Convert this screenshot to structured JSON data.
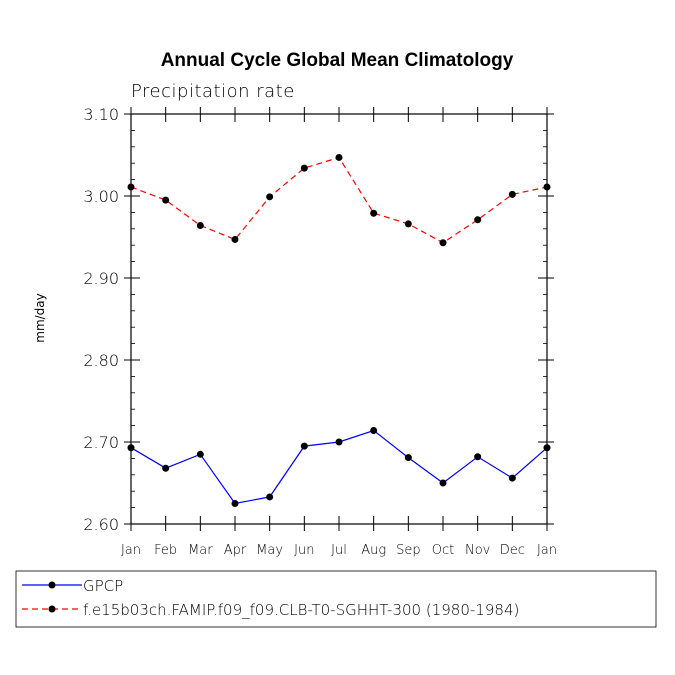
{
  "chart_data": {
    "type": "line",
    "title": "Annual Cycle Global Mean Climatology",
    "subtitle": "Precipitation rate",
    "ylabel": "mm/day",
    "xlabel": "",
    "categories": [
      "Jan",
      "Feb",
      "Mar",
      "Apr",
      "May",
      "Jun",
      "Jul",
      "Aug",
      "Sep",
      "Oct",
      "Nov",
      "Dec",
      "Jan"
    ],
    "ylim": [
      2.6,
      3.1
    ],
    "yticks": [
      "2.60",
      "2.70",
      "2.80",
      "2.90",
      "3.00",
      "3.10"
    ],
    "series": [
      {
        "name": "GPCP",
        "color": "#0000ff",
        "dash": "solid",
        "values": [
          2.693,
          2.668,
          2.685,
          2.625,
          2.633,
          2.695,
          2.7,
          2.714,
          2.681,
          2.65,
          2.682,
          2.656,
          2.693
        ]
      },
      {
        "name": "f.e15b03ch.FAMIP.f09_f09.CLB-T0-SGHHT-300 (1980-1984)",
        "color": "#ff0000",
        "dash": "dashed",
        "values": [
          3.011,
          2.995,
          2.964,
          2.947,
          2.999,
          3.034,
          3.047,
          2.979,
          2.966,
          2.943,
          2.971,
          3.002,
          3.011
        ]
      }
    ]
  }
}
